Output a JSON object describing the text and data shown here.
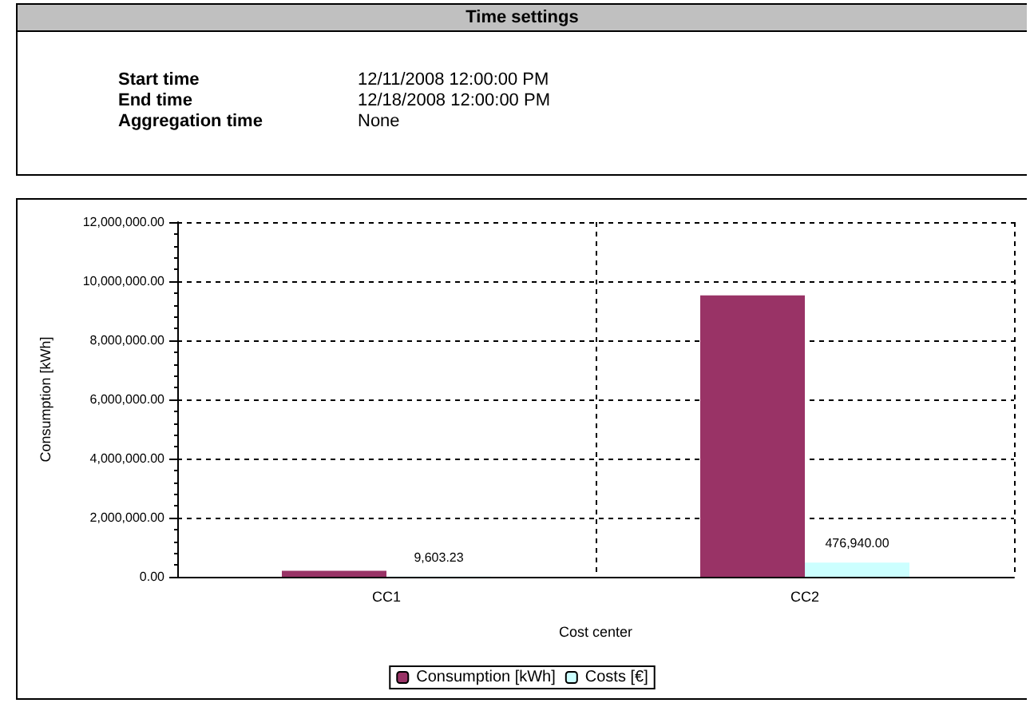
{
  "chart_data": [
    {
      "type": "other",
      "title": "Time settings",
      "annotations": [
        "Start time",
        "12/11/2008 12:00:00 PM",
        "End time",
        "12/18/2008 12:00:00 PM",
        "Aggregation time",
        "None"
      ]
    },
    {
      "type": "bar",
      "xlabel": "Cost center",
      "ylabel": "Consumption [kWh]",
      "categories": [
        "CC1",
        "CC2"
      ],
      "series": [
        {
          "name": "Consumption [kWh]",
          "color": "#993366",
          "values": [
            200000,
            9520000
          ]
        },
        {
          "name": "Costs [€]",
          "color": "#ccffff",
          "values": [
            9603.23,
            476940
          ],
          "value_labels": [
            "9,603.23",
            "476,940.00"
          ]
        }
      ],
      "ylim": [
        0,
        12000000
      ],
      "yticks": [
        {
          "value": 0,
          "label": "0.00"
        },
        {
          "value": 2000000,
          "label": "2,000,000.00"
        },
        {
          "value": 4000000,
          "label": "4,000,000.00"
        },
        {
          "value": 6000000,
          "label": "6,000,000.00"
        },
        {
          "value": 8000000,
          "label": "8,000,000.00"
        },
        {
          "value": 10000000,
          "label": "10,000,000.00"
        },
        {
          "value": 12000000,
          "label": "12,000,000.00"
        }
      ],
      "grid": true,
      "legend": "bottom"
    }
  ]
}
